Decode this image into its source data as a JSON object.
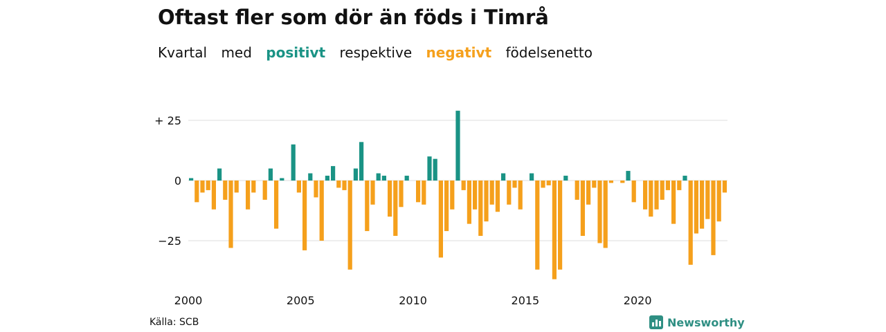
{
  "title": "Oftast fler som dör än föds i Timrå",
  "subtitle": {
    "w1": "Kvartal",
    "w2": "med",
    "positive": "positivt",
    "w3": "respektive",
    "negative": "negativt",
    "w4": "födelsenetto"
  },
  "source": "Källa: SCB",
  "logo": "Newsworthy",
  "colors": {
    "positive": "#1a9385",
    "negative": "#f5a01c",
    "grid": "#dddddd"
  },
  "chart_data": {
    "type": "bar",
    "x_start": 2000,
    "x_end": 2024,
    "values": [
      1,
      -9,
      -5,
      -4,
      -12,
      5,
      -8,
      -28,
      -5,
      0,
      -12,
      -5,
      0,
      -8,
      5,
      -20,
      1,
      0,
      15,
      -5,
      -29,
      3,
      -7,
      -25,
      2,
      6,
      -3,
      -4,
      -37,
      5,
      16,
      -21,
      -10,
      3,
      2,
      -15,
      -23,
      -11,
      2,
      0,
      -9,
      -10,
      10,
      9,
      -32,
      -21,
      -12,
      29,
      -4,
      -18,
      -12,
      -23,
      -17,
      -10,
      -13,
      3,
      -10,
      -3,
      -12,
      0,
      3,
      -37,
      -3,
      -2,
      -41,
      -37,
      2,
      0,
      -8,
      -23,
      -10,
      -3,
      -26,
      -28,
      -1,
      0,
      -1,
      4,
      -9,
      0,
      -12,
      -15,
      -12,
      -8,
      -4,
      -18,
      -4,
      2,
      -35,
      -22,
      -20,
      -16,
      -31,
      -17,
      -5
    ],
    "y_ticks": [
      25,
      0,
      -25
    ],
    "y_tick_labels": [
      "+ 25",
      "0",
      "−25"
    ],
    "x_ticks": [
      2000,
      2005,
      2010,
      2015,
      2020
    ],
    "x_tick_labels": [
      "2000",
      "2005",
      "2010",
      "2015",
      "2020"
    ],
    "ylim": [
      -42,
      30
    ],
    "grid": true
  }
}
